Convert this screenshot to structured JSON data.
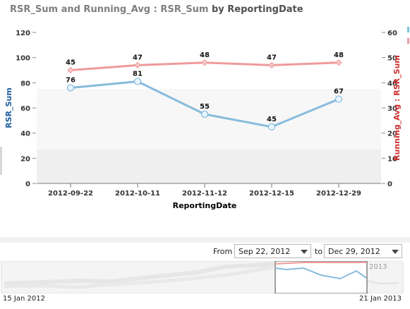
{
  "title": {
    "main": "RSR_Sum and Running_Avg : RSR_Sum",
    "by": "by",
    "field": "ReportingDate"
  },
  "chart_data": {
    "type": "line",
    "categories": [
      "2012-09-22",
      "2012-10-11",
      "2012-11-12",
      "2012-12-15",
      "2012-12-29"
    ],
    "xlabel": "ReportingDate",
    "series": [
      {
        "name": "RSR_Sum",
        "axis": "left",
        "color": "#88bbdd",
        "values": [
          76,
          81,
          55,
          45,
          67
        ]
      },
      {
        "name": "Running_Avg : RSR_Sum",
        "axis": "right",
        "color": "#f09a9a",
        "values": [
          45,
          47,
          48,
          47,
          48
        ]
      }
    ],
    "left_axis": {
      "label": "RSR_Sum",
      "min": 0,
      "max": 120,
      "ticks": [
        0,
        20,
        40,
        60,
        80,
        100,
        120
      ],
      "color": "#1f5f9f"
    },
    "right_axis": {
      "label": "Running_Avg : RSR_Sum",
      "min": 0,
      "max": 60,
      "ticks": [
        0,
        10,
        20,
        30,
        40,
        50,
        60
      ],
      "color": "#d03030"
    },
    "grid": false
  },
  "navigator": {
    "from_label": "From",
    "to_label": "to",
    "from_value": "Sep 22, 2012",
    "to_value": "Dec 29, 2012",
    "start_date": "15 Jan 2012",
    "end_date": "21 Jan 2013",
    "year_label": "2013"
  }
}
